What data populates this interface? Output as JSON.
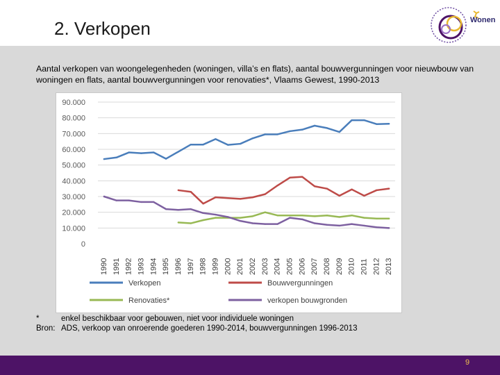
{
  "slide": {
    "title": "2. Verkopen",
    "subtitle": "Aantal verkopen van woongelegenheden (woningen, villa’s en flats), aantal bouwvergunningen voor nieuwbouw van woningen en flats, aantal bouwvergunningen voor renovaties*, Vlaams Gewest, 1990-2013",
    "logo_text": "Wonen",
    "footnote_marker": "*",
    "footnote_text": "enkel beschikbaar voor gebouwen, niet voor individuele woningen",
    "source_label": "Bron:",
    "source_text": "ADS, verkoop van onroerende goederen 1990-2014, bouwvergunningen 1996-2013",
    "page_number": "9"
  },
  "colors": {
    "footer_band": "#4d1366",
    "page_number": "#f2c14e",
    "background_band": "#d9d9d9",
    "verkopen": "#4a7ebb",
    "bouwvergunningen": "#be4b48",
    "renovaties": "#98b954",
    "verkopen_bouwgronden": "#7d60a0"
  },
  "chart_data": {
    "type": "line",
    "title": "",
    "xlabel": "",
    "ylabel": "",
    "ylim": [
      0,
      90000
    ],
    "yticks": [
      "0",
      "10.000",
      "20.000",
      "30.000",
      "40.000",
      "50.000",
      "60.000",
      "70.000",
      "80.000",
      "90.000"
    ],
    "grid": "horizontal",
    "legend_position": "bottom",
    "x": [
      "1990",
      "1991",
      "1992",
      "1993",
      "1994",
      "1995",
      "1996",
      "1997",
      "1998",
      "1999",
      "2000",
      "2001",
      "2002",
      "2003",
      "2004",
      "2005",
      "2006",
      "2007",
      "2008",
      "2009",
      "2010",
      "2011",
      "2012",
      "2013"
    ],
    "series": [
      {
        "name": "Verkopen",
        "color": "#4a7ebb",
        "values": [
          53800,
          54800,
          58000,
          57500,
          58000,
          54000,
          58500,
          63000,
          63000,
          66500,
          62800,
          63500,
          67000,
          69500,
          69500,
          71500,
          72500,
          75000,
          73500,
          71000,
          78500,
          78500,
          76000,
          76200
        ]
      },
      {
        "name": "Bouwvergunningen",
        "color": "#be4b48",
        "values": [
          null,
          null,
          null,
          null,
          null,
          null,
          34000,
          33000,
          25500,
          29500,
          29000,
          28500,
          29500,
          31500,
          37000,
          42000,
          42500,
          36500,
          35000,
          30500,
          34500,
          30500,
          34000,
          35000
        ]
      },
      {
        "name": "Renovaties*",
        "color": "#98b954",
        "values": [
          null,
          null,
          null,
          null,
          null,
          null,
          13500,
          13000,
          15000,
          16500,
          16500,
          16500,
          17500,
          20000,
          18000,
          18000,
          18000,
          17500,
          18000,
          17000,
          18000,
          16500,
          16000,
          16000
        ]
      },
      {
        "name": "verkopen bouwgronden",
        "color": "#7d60a0",
        "values": [
          30000,
          27500,
          27500,
          26500,
          26500,
          22000,
          21500,
          22000,
          19500,
          18500,
          17000,
          14500,
          13000,
          12500,
          12500,
          16500,
          15500,
          13000,
          12000,
          11500,
          12500,
          11500,
          10500,
          10000
        ]
      }
    ]
  }
}
